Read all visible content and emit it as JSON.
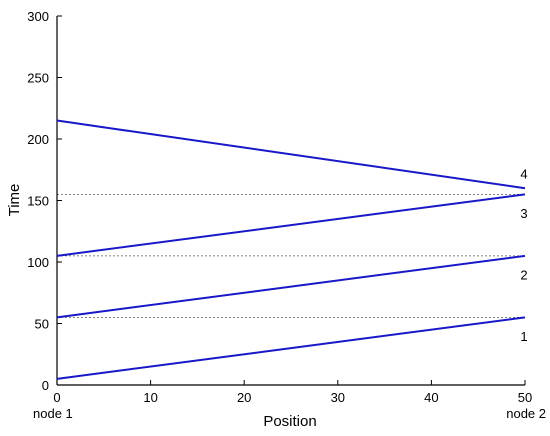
{
  "chart_data": {
    "type": "line",
    "title": "",
    "xlabel": "Position",
    "ylabel": "Time",
    "xlim": [
      0,
      50
    ],
    "ylim": [
      0,
      300
    ],
    "xticks": [
      0,
      10,
      20,
      30,
      40,
      50
    ],
    "yticks": [
      0,
      50,
      100,
      150,
      200,
      250,
      300
    ],
    "grid": false,
    "line_color": "#1818c8",
    "series": [
      {
        "x": [
          0,
          50
        ],
        "y": [
          5,
          55
        ]
      },
      {
        "x": [
          0,
          50
        ],
        "y": [
          55,
          105
        ]
      },
      {
        "x": [
          0,
          50
        ],
        "y": [
          105,
          155
        ]
      },
      {
        "x": [
          0,
          50
        ],
        "y": [
          215,
          160
        ]
      }
    ],
    "reference_lines": [
      {
        "y": 55
      },
      {
        "y": 105
      },
      {
        "y": 155
      }
    ],
    "annotations": [
      {
        "text": "1",
        "x": 50,
        "y": 40
      },
      {
        "text": "2",
        "x": 50,
        "y": 90
      },
      {
        "text": "3",
        "x": 50,
        "y": 140
      },
      {
        "text": "4",
        "x": 50,
        "y": 172
      }
    ],
    "x_endpoint_labels": [
      {
        "text": "node 1",
        "x": 0
      },
      {
        "text": "node 2",
        "x": 50
      }
    ]
  }
}
